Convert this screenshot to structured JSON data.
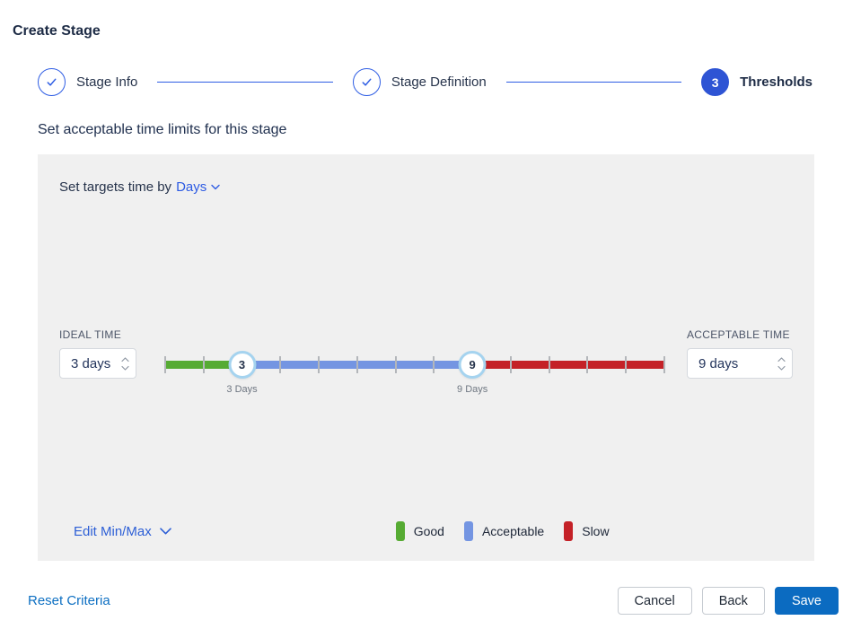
{
  "page_title": "Create Stage",
  "stepper": {
    "steps": [
      {
        "label": "Stage Info",
        "state": "complete"
      },
      {
        "label": "Stage Definition",
        "state": "complete"
      },
      {
        "label": "Thresholds",
        "state": "active",
        "number": "3"
      }
    ]
  },
  "heading": "Set acceptable time limits for this stage",
  "panel": {
    "target_time_label": "Set targets time by",
    "target_time_value": "Days",
    "ideal_time": {
      "label": "IDEAL TIME",
      "value": "3 days"
    },
    "acceptable_time": {
      "label": "ACCEPTABLE TIME",
      "value": "9 days"
    },
    "edit_minmax_label": "Edit Min/Max",
    "legend": [
      {
        "label": "Good",
        "color": "#56ab33"
      },
      {
        "label": "Acceptable",
        "color": "#7495e2"
      },
      {
        "label": "Slow",
        "color": "#c42127"
      }
    ],
    "slider": {
      "min": 1,
      "max": 14,
      "ideal": 3,
      "acceptable": 9,
      "ideal_handle_label": "3",
      "acceptable_handle_label": "9",
      "ideal_tooltip": "3 Days",
      "acceptable_tooltip": "9 Days",
      "colors": {
        "good": "#56ab33",
        "acceptable": "#7495e2",
        "slow": "#c42127"
      }
    }
  },
  "footer": {
    "reset_label": "Reset Criteria",
    "cancel_label": "Cancel",
    "back_label": "Back",
    "save_label": "Save"
  },
  "colors": {
    "stepper_blue": "#2e5de4",
    "active_step_blue": "#2e54d4",
    "link_blue": "#2d5be3",
    "reset_link_blue": "#0d6fc2",
    "save_blue": "#0b6bc1",
    "panel_bg": "#f0f0f0"
  }
}
